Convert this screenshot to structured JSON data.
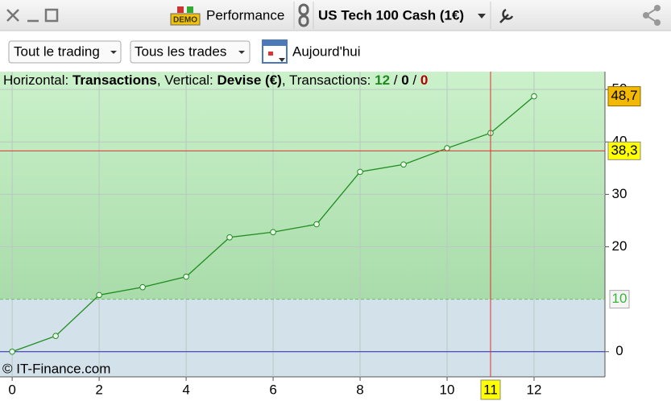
{
  "toolbar": {
    "demo_badge": "DEMO",
    "performance": "Performance",
    "instrument": "US Tech 100 Cash (1€)"
  },
  "filters": {
    "scope": "Tout le trading",
    "trades": "Tous les trades",
    "date": "Aujourd'hui"
  },
  "info": {
    "parts": [
      {
        "text": "Horizontal: ",
        "weight": "normal",
        "color": "#000000"
      },
      {
        "text": "Transactions",
        "weight": "bold",
        "color": "#000000"
      },
      {
        "text": ", Vertical: ",
        "weight": "normal",
        "color": "#000000"
      },
      {
        "text": "Devise (€)",
        "weight": "bold",
        "color": "#000000"
      },
      {
        "text": ", Transactions: ",
        "weight": "normal",
        "color": "#000000"
      },
      {
        "text": "12",
        "weight": "bold",
        "color": "#1f8a1f"
      },
      {
        "text": " / ",
        "weight": "normal",
        "color": "#000000"
      },
      {
        "text": "0",
        "weight": "bold",
        "color": "#000000"
      },
      {
        "text": " / ",
        "weight": "normal",
        "color": "#000000"
      },
      {
        "text": "0",
        "weight": "bold",
        "color": "#b00000"
      }
    ]
  },
  "footer": "© IT-Finance.com",
  "chart_data": {
    "type": "line",
    "x": [
      0,
      1,
      2,
      3,
      4,
      5,
      6,
      7,
      8,
      9,
      10,
      11,
      12
    ],
    "series": [
      {
        "color": "#1e8c1e",
        "values": [
          0,
          3,
          10.8,
          12.3,
          14.3,
          21.8,
          22.8,
          24.3,
          34.3,
          35.7,
          38.8,
          41.7,
          48.7
        ],
        "last_label": {
          "value": 48.7,
          "label": "48,7"
        }
      }
    ],
    "xlim": [
      -0.28,
      13.63
    ],
    "ylim": [
      -4.8,
      53.4
    ],
    "xticks": [
      0,
      2,
      4,
      6,
      8,
      10,
      12
    ],
    "yticks": [
      0,
      20,
      30,
      40,
      50
    ],
    "threshold": 10,
    "crosshair": {
      "x": 11,
      "y": {
        "value": 38.3,
        "label": "38,3"
      }
    },
    "grid": true
  }
}
